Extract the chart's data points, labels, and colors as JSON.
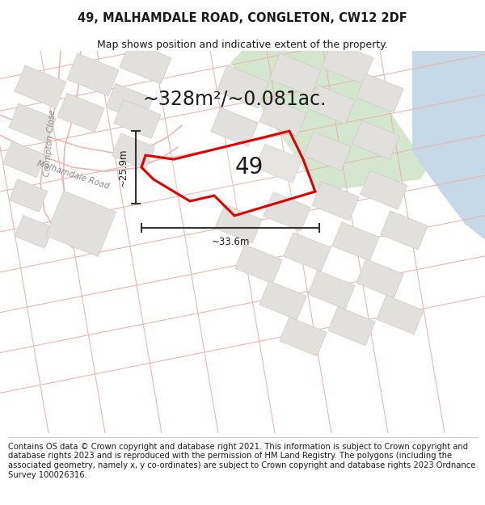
{
  "title_line1": "49, MALHAMDALE ROAD, CONGLETON, CW12 2DF",
  "title_line2": "Map shows position and indicative extent of the property.",
  "area_text": "~328m²/~0.081ac.",
  "number_label": "49",
  "dim_vertical": "~25.9m",
  "dim_horizontal": "~33.6m",
  "footer_text": "Contains OS data © Crown copyright and database right 2021. This information is subject to Crown copyright and database rights 2023 and is reproduced with the permission of HM Land Registry. The polygons (including the associated geometry, namely x, y co-ordinates) are subject to Crown copyright and database rights 2023 Ordnance Survey 100026316.",
  "map_bg": "#f2f0ed",
  "green_area_color": "#d4e6ce",
  "blue_area_color": "#c5d9e8",
  "road_line_color": "#e8b8b0",
  "block_fill": "#e2e0dc",
  "block_stroke": "#cccccc",
  "property_stroke": "#dd0000",
  "dim_line_color": "#333333",
  "text_color": "#1a1a1a",
  "road_label_color": "#888888",
  "title_fontsize": 10.5,
  "subtitle_fontsize": 9,
  "area_fontsize": 17,
  "number_fontsize": 20,
  "dim_fontsize": 8.5,
  "footer_fontsize": 7.2
}
